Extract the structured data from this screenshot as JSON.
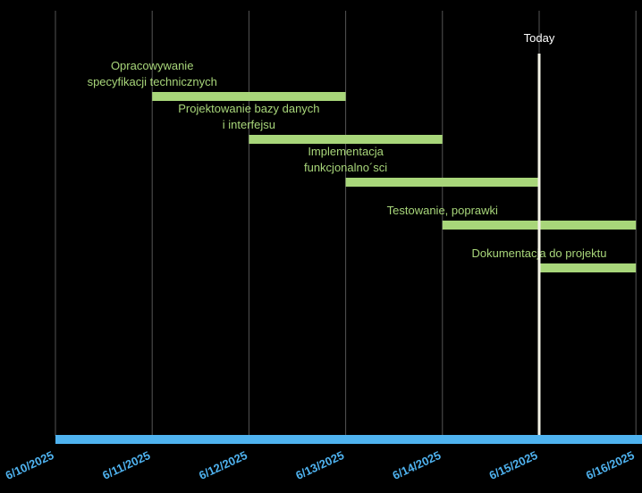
{
  "chart_data": {
    "type": "gantt",
    "x_ticks": [
      "6/10/2025",
      "6/11/2025",
      "6/12/2025",
      "6/13/2025",
      "6/14/2025",
      "6/15/2025",
      "6/16/2025"
    ],
    "tasks": [
      {
        "label": [
          "Opracowywanie",
          "specyfikacji technicznych"
        ],
        "start": "6/11/2025",
        "end": "6/13/2025"
      },
      {
        "label": [
          "Projektowanie bazy danych",
          "i interfejsu"
        ],
        "start": "6/12/2025",
        "end": "6/14/2025"
      },
      {
        "label": [
          "Implementacja",
          "funkcjonalno´sci"
        ],
        "start": "6/13/2025",
        "end": "6/15/2025"
      },
      {
        "label": [
          "Testowanie, poprawki"
        ],
        "start": "6/14/2025",
        "end": "6/16/2025"
      },
      {
        "label": [
          "Dokumentacja do projektu"
        ],
        "start": "6/15/2025",
        "end": "6/16/2025"
      }
    ],
    "today": {
      "label": "Today",
      "date": "6/15/2025"
    },
    "grid": true,
    "colors": {
      "background": "#000000",
      "task_bar": "#a8d67a",
      "task_label": "#a8d67a",
      "timeline_bar": "#4fb3f0",
      "tick_label": "#4fb3f0",
      "today_line": "#f2f2e6",
      "today_label": "#ffffff",
      "gridline": "#555555"
    }
  }
}
